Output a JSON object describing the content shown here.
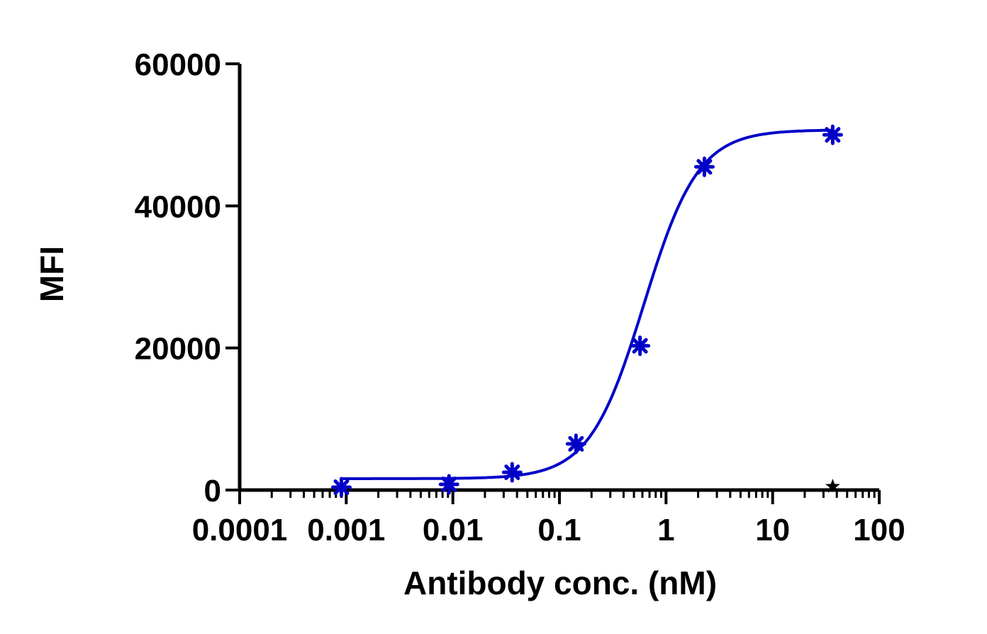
{
  "chart_data": {
    "type": "scatter",
    "xlabel": "Antibody conc. (nM)",
    "ylabel": "MFI",
    "x_scale": "log",
    "xlim": [
      0.0001,
      100
    ],
    "ylim": [
      0,
      60000
    ],
    "x_tick_labels": [
      "0.0001",
      "0.001",
      "0.01",
      "0.1",
      "1",
      "10",
      "100"
    ],
    "x_tick_values": [
      0.0001,
      0.001,
      0.01,
      0.1,
      1,
      10,
      100
    ],
    "y_tick_labels": [
      "0",
      "20000",
      "40000",
      "60000"
    ],
    "y_tick_values": [
      0,
      20000,
      40000,
      60000
    ],
    "grid": false,
    "series": [
      {
        "color": "#0000c8",
        "marker": "asterisk",
        "x": [
          0.0009,
          0.0092,
          0.036,
          0.143,
          0.57,
          2.29,
          36.6
        ],
        "y": [
          400,
          800,
          2500,
          6500,
          20300,
          45500,
          50000
        ],
        "fit": {
          "model": "4PL",
          "bottom": 1600,
          "top": 50700,
          "ec50": 0.62,
          "hill": 1.7
        }
      },
      {
        "color": "#000000",
        "marker": "star",
        "x": [
          36.6
        ],
        "y": [
          500
        ]
      }
    ]
  }
}
